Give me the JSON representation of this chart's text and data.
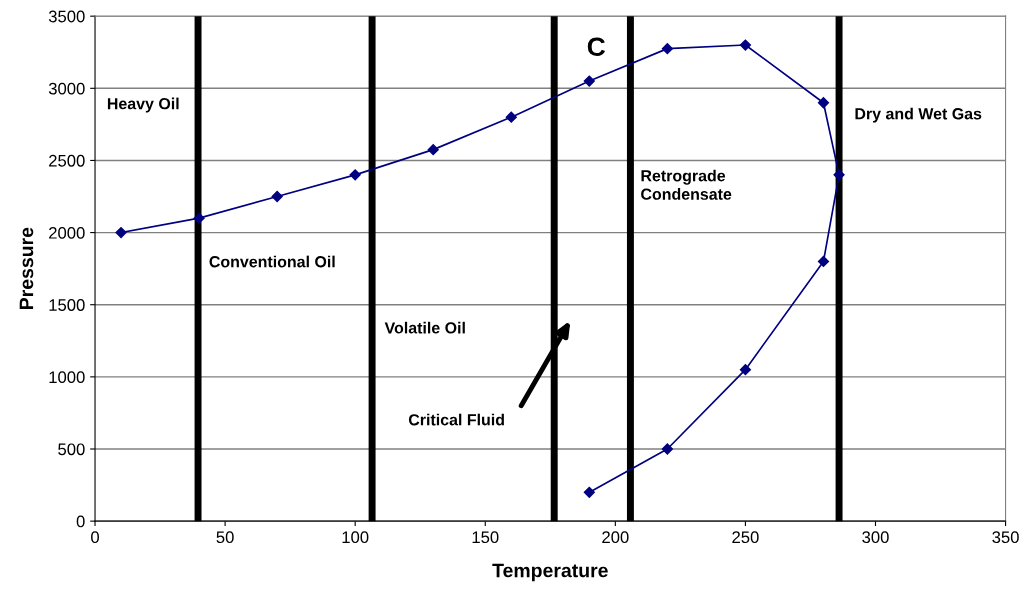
{
  "chart_data": {
    "type": "line",
    "xlabel": "Temperature",
    "ylabel": "Pressure",
    "series": [
      {
        "color": "#000080",
        "x": [
          10,
          40,
          70,
          100,
          130,
          160,
          190,
          220,
          250,
          280,
          286,
          280,
          250,
          220,
          190
        ],
        "values": [
          2000,
          2100,
          2250,
          2400,
          2575,
          2800,
          3050,
          3275,
          3300,
          2900,
          2400,
          1800,
          1050,
          500,
          200
        ]
      }
    ],
    "marker": "diamond",
    "line_style": "solid",
    "grid": "y",
    "xlim": [
      0,
      350
    ],
    "xticks": [
      0,
      50,
      100,
      150,
      200,
      250,
      300,
      350
    ],
    "ylim": [
      0,
      3500
    ],
    "yticks": [
      0,
      500,
      1000,
      1500,
      2000,
      2500,
      3000,
      3500
    ],
    "ref_lines": [
      {
        "axis": "x",
        "value": 39.6,
        "color": "#000000"
      },
      {
        "axis": "x",
        "value": 106.5,
        "color": "#000000"
      },
      {
        "axis": "x",
        "value": 176.5,
        "color": "#000000"
      },
      {
        "axis": "x",
        "value": 205.8,
        "color": "#000000"
      },
      {
        "axis": "x",
        "value": 286,
        "color": "#000000"
      }
    ],
    "annotations": [
      "Heavy Oil",
      "Conventional Oil",
      "Volatile Oil",
      "Critical Fluid",
      "C",
      "Retrograde\nCondensate",
      "Dry and Wet Gas"
    ]
  }
}
